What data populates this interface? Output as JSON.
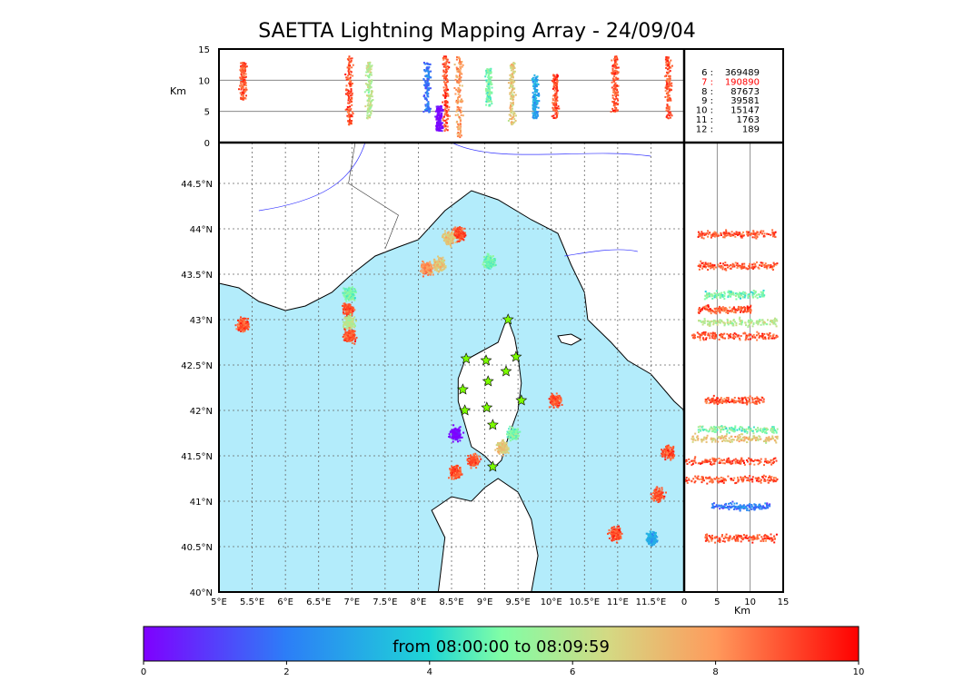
{
  "chart_data": {
    "type": "scatter",
    "title": "SAETTA Lightning Mapping Array - 24/09/04",
    "map": {
      "lon_range": [
        5.0,
        12.0
      ],
      "lat_range": [
        40.0,
        44.95
      ],
      "lon_ticks": [
        "5°E",
        "5.5°E",
        "6°E",
        "6.5°E",
        "7°E",
        "7.5°E",
        "8°E",
        "8.5°E",
        "9°E",
        "9.5°E",
        "10°E",
        "10.5°E",
        "11°E",
        "11.5°E"
      ],
      "lat_ticks": [
        "40°N",
        "40.5°N",
        "41°N",
        "41.5°N",
        "42°N",
        "42.5°N",
        "43°N",
        "43.5°N",
        "44°N",
        "44.5°N"
      ],
      "sea_color": "#b3ecfb",
      "land_color": "#ffffff",
      "stations": [
        [
          9.35,
          43.0
        ],
        [
          8.72,
          42.57
        ],
        [
          9.02,
          42.55
        ],
        [
          9.47,
          42.59
        ],
        [
          8.67,
          42.23
        ],
        [
          8.7,
          42.0
        ],
        [
          9.05,
          42.32
        ],
        [
          9.32,
          42.43
        ],
        [
          9.55,
          42.11
        ],
        [
          9.03,
          42.03
        ],
        [
          9.12,
          41.84
        ],
        [
          9.12,
          41.38
        ]
      ]
    },
    "panels": {
      "top": {
        "ylabel": "Km",
        "yticks": [
          "0",
          "5",
          "10",
          "15"
        ],
        "ylim": [
          0,
          15
        ]
      },
      "right": {
        "xlabel": "Km",
        "xticks": [
          "0",
          "5",
          "10",
          "15"
        ],
        "xlim": [
          0,
          15
        ]
      }
    },
    "counts": [
      {
        "label": "6 :",
        "value": "369489",
        "color": "#000000"
      },
      {
        "label": "7 :",
        "value": "190890",
        "color": "#ff0000"
      },
      {
        "label": "8 :",
        "value": "87673",
        "color": "#000000"
      },
      {
        "label": "9 :",
        "value": "39581",
        "color": "#000000"
      },
      {
        "label": "10 :",
        "value": "15147",
        "color": "#000000"
      },
      {
        "label": "11 :",
        "value": "1763",
        "color": "#000000"
      },
      {
        "label": "12 :",
        "value": "189",
        "color": "#000000"
      }
    ],
    "clusters": [
      {
        "lon": 8.6,
        "lat": 43.95,
        "c": 9
      },
      {
        "lon": 8.45,
        "lat": 43.9,
        "c": 7
      },
      {
        "lon": 8.3,
        "lat": 43.62,
        "c": 7
      },
      {
        "lon": 8.12,
        "lat": 43.57,
        "c": 8
      },
      {
        "lon": 9.05,
        "lat": 43.65,
        "c": 5
      },
      {
        "lon": 6.95,
        "lat": 43.28,
        "c": 5
      },
      {
        "lon": 6.93,
        "lat": 43.12,
        "c": 9
      },
      {
        "lon": 6.95,
        "lat": 42.98,
        "c": 6
      },
      {
        "lon": 6.95,
        "lat": 42.83,
        "c": 9
      },
      {
        "lon": 5.35,
        "lat": 42.95,
        "c": 9
      },
      {
        "lon": 8.55,
        "lat": 41.75,
        "c": 0
      },
      {
        "lon": 8.55,
        "lat": 41.33,
        "c": 9
      },
      {
        "lon": 8.82,
        "lat": 41.45,
        "c": 9
      },
      {
        "lon": 9.25,
        "lat": 41.6,
        "c": 7
      },
      {
        "lon": 9.42,
        "lat": 41.75,
        "c": 5
      },
      {
        "lon": 11.75,
        "lat": 41.55,
        "c": 9
      },
      {
        "lon": 10.95,
        "lat": 40.65,
        "c": 9
      },
      {
        "lon": 11.5,
        "lat": 40.6,
        "c": 3
      },
      {
        "lon": 10.05,
        "lat": 42.12,
        "c": 9
      },
      {
        "lon": 11.6,
        "lat": 41.08,
        "c": 9
      }
    ],
    "top_columns": [
      {
        "lon": 5.35,
        "zmin": 7,
        "zmax": 13,
        "c": 9
      },
      {
        "lon": 6.95,
        "zmin": 3,
        "zmax": 14,
        "c": 9
      },
      {
        "lon": 7.25,
        "zmin": 4,
        "zmax": 13,
        "c": 6
      },
      {
        "lon": 8.12,
        "zmin": 5,
        "zmax": 13,
        "c": 2
      },
      {
        "lon": 8.4,
        "zmin": 2,
        "zmax": 14,
        "c": 9
      },
      {
        "lon": 8.6,
        "zmin": 1,
        "zmax": 14,
        "c": 8
      },
      {
        "lon": 8.3,
        "zmin": 2,
        "zmax": 6,
        "c": 0
      },
      {
        "lon": 9.05,
        "zmin": 6,
        "zmax": 12,
        "c": 5
      },
      {
        "lon": 9.4,
        "zmin": 3,
        "zmax": 13,
        "c": 7
      },
      {
        "lon": 9.75,
        "zmin": 4,
        "zmax": 11,
        "c": 3
      },
      {
        "lon": 10.05,
        "zmin": 4,
        "zmax": 11,
        "c": 9
      },
      {
        "lon": 10.95,
        "zmin": 5,
        "zmax": 14,
        "c": 9
      },
      {
        "lon": 11.75,
        "zmin": 4,
        "zmax": 14,
        "c": 9
      }
    ],
    "right_bands": [
      {
        "lat": 43.95,
        "zmin": 2,
        "zmax": 14,
        "c": 9
      },
      {
        "lat": 43.6,
        "zmin": 2,
        "zmax": 14,
        "c": 9
      },
      {
        "lat": 43.28,
        "zmin": 3,
        "zmax": 12,
        "c": 5
      },
      {
        "lat": 43.12,
        "zmin": 2,
        "zmax": 10,
        "c": 9
      },
      {
        "lat": 42.98,
        "zmin": 2,
        "zmax": 14,
        "c": 6
      },
      {
        "lat": 42.83,
        "zmin": 1,
        "zmax": 14,
        "c": 9
      },
      {
        "lat": 42.12,
        "zmin": 3,
        "zmax": 12,
        "c": 9
      },
      {
        "lat": 41.8,
        "zmin": 2,
        "zmax": 14,
        "c": 5
      },
      {
        "lat": 41.7,
        "zmin": 1,
        "zmax": 14,
        "c": 7
      },
      {
        "lat": 41.45,
        "zmin": 0,
        "zmax": 14,
        "c": 9
      },
      {
        "lat": 41.25,
        "zmin": 0,
        "zmax": 14,
        "c": 9
      },
      {
        "lat": 40.95,
        "zmin": 4,
        "zmax": 13,
        "c": 2
      },
      {
        "lat": 40.6,
        "zmin": 3,
        "zmax": 14,
        "c": 9
      }
    ],
    "colorbar": {
      "label": "from 08:00:00 to 08:09:59",
      "ticks": [
        "0",
        "2",
        "4",
        "6",
        "8",
        "10"
      ],
      "range": [
        0,
        10
      ]
    }
  }
}
